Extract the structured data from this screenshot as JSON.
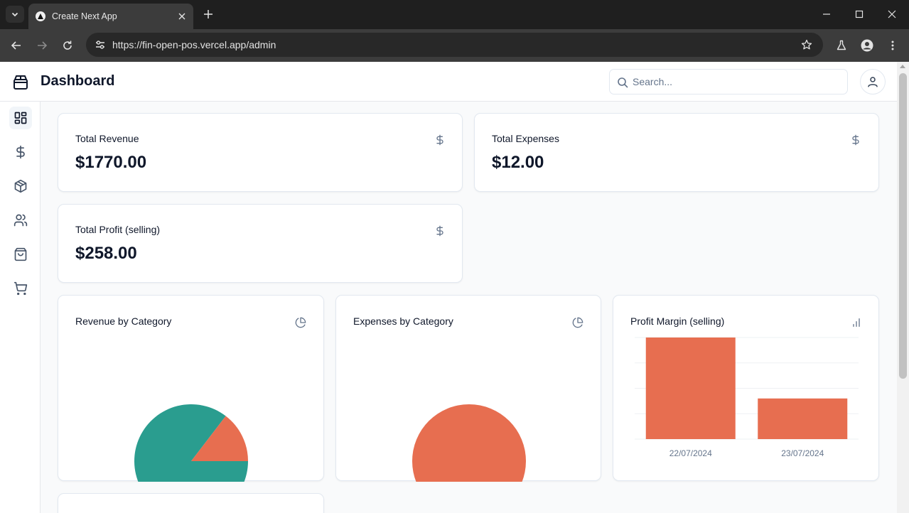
{
  "browser": {
    "tab_title": "Create Next App",
    "url": "https://fin-open-pos.vercel.app/admin"
  },
  "header": {
    "title": "Dashboard",
    "search_placeholder": "Search..."
  },
  "sidebar": {
    "items": [
      {
        "icon": "layout-dashboard-icon",
        "active": true
      },
      {
        "icon": "dollar-sign-icon"
      },
      {
        "icon": "package-icon"
      },
      {
        "icon": "users-icon"
      },
      {
        "icon": "shopping-bag-icon"
      },
      {
        "icon": "shopping-cart-icon"
      }
    ]
  },
  "stats": {
    "revenue": {
      "label": "Total Revenue",
      "value": "$1770.00"
    },
    "expenses": {
      "label": "Total Expenses",
      "value": "$12.00"
    },
    "profit": {
      "label": "Total Profit (selling)",
      "value": "$258.00"
    }
  },
  "colors": {
    "teal": "#2a9d8f",
    "coral": "#e76e50"
  },
  "charts": {
    "revenue_by_category": {
      "title": "Revenue by Category"
    },
    "expenses_by_category": {
      "title": "Expenses by Category"
    },
    "profit_margin": {
      "title": "Profit Margin (selling)"
    }
  },
  "chart_data": [
    {
      "type": "pie",
      "title": "Revenue by Category",
      "slices": [
        {
          "value": 85.4,
          "color": "#2a9d8f"
        },
        {
          "value": 14.6,
          "color": "#e76e50"
        }
      ]
    },
    {
      "type": "pie",
      "title": "Expenses by Category",
      "slices": [
        {
          "value": 100,
          "color": "#e76e50"
        }
      ]
    },
    {
      "type": "bar",
      "title": "Profit Margin (selling)",
      "categories": [
        "22/07/2024",
        "23/07/2024"
      ],
      "values": [
        100,
        40
      ],
      "ylim": [
        0,
        100
      ],
      "grid": true
    }
  ]
}
